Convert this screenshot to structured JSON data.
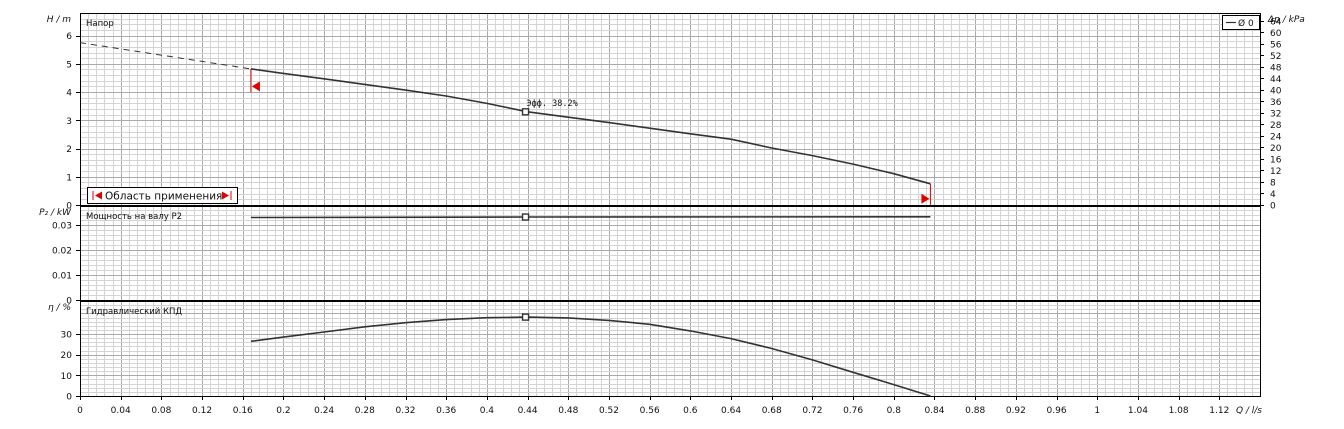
{
  "chart_data": [
    {
      "type": "line",
      "panel": "head",
      "title": "Напор",
      "ylabel": "H / m",
      "ylabel_right": "Δp / kPa",
      "ylim": [
        0,
        6.8
      ],
      "yticks": [
        "0",
        "1",
        "2",
        "3",
        "4",
        "5",
        "6"
      ],
      "ylim_right": [
        0,
        66.7
      ],
      "yticks_right": [
        "0",
        "4",
        "8",
        "12",
        "16",
        "20",
        "24",
        "28",
        "32",
        "36",
        "40",
        "44",
        "48",
        "52",
        "56",
        "60",
        "64"
      ],
      "legend": {
        "placement": "top-right",
        "label": "Ø 0"
      },
      "annotation": "Эфф. 38.2%",
      "operating_range_label": "Область применения",
      "dashed_extension": {
        "x": [
          0,
          0.168
        ],
        "y": [
          5.75,
          4.82
        ]
      },
      "series": [
        {
          "x": [
            0.168,
            0.2,
            0.24,
            0.28,
            0.32,
            0.36,
            0.4,
            0.44,
            0.48,
            0.52,
            0.56,
            0.6,
            0.64,
            0.68,
            0.72,
            0.76,
            0.8,
            0.836
          ],
          "y": [
            4.82,
            4.66,
            4.47,
            4.27,
            4.07,
            3.86,
            3.6,
            3.3,
            3.11,
            2.92,
            2.72,
            2.52,
            2.33,
            2.02,
            1.75,
            1.45,
            1.11,
            0.75
          ]
        }
      ],
      "operating_point": {
        "x": 0.438,
        "y": 3.3
      },
      "range_start_marker": {
        "x": 0.168,
        "y": 4.2
      },
      "range_end_marker": {
        "x": 0.836,
        "y": 0.22
      }
    },
    {
      "type": "line",
      "panel": "power",
      "title": "Мощность на валу P2",
      "ylabel": "P₂ / kW",
      "ylim": [
        0,
        0.0375
      ],
      "yticks": [
        "0",
        "0.01",
        "0.02",
        "0.03"
      ],
      "series": [
        {
          "x": [
            0.168,
            0.44,
            0.836
          ],
          "y": [
            0.0329,
            0.0331,
            0.0332
          ]
        }
      ],
      "operating_point": {
        "x": 0.438,
        "y": 0.0331
      }
    },
    {
      "type": "line",
      "panel": "efficiency",
      "title": "Гидравлический КПД",
      "ylabel": "η / %",
      "ylim": [
        0,
        46
      ],
      "yticks": [
        "0",
        "10",
        "20",
        "30"
      ],
      "series": [
        {
          "x": [
            0.168,
            0.2,
            0.24,
            0.28,
            0.32,
            0.36,
            0.4,
            0.44,
            0.48,
            0.52,
            0.56,
            0.6,
            0.64,
            0.68,
            0.72,
            0.76,
            0.8,
            0.836
          ],
          "y": [
            26.5,
            28.5,
            31.0,
            33.5,
            35.5,
            37.0,
            37.9,
            38.2,
            37.8,
            36.6,
            34.7,
            31.5,
            27.8,
            23.0,
            17.5,
            11.5,
            5.5,
            0.0
          ]
        }
      ],
      "operating_point": {
        "x": 0.438,
        "y": 38.2
      }
    }
  ],
  "x_axis": {
    "label": "Q / l/s",
    "xlim": [
      0,
      1.16
    ],
    "ticks": [
      "0",
      "0.04",
      "0.08",
      "0.12",
      "0.16",
      "0.2",
      "0.24",
      "0.28",
      "0.32",
      "0.36",
      "0.4",
      "0.44",
      "0.48",
      "0.52",
      "0.56",
      "0.6",
      "0.64",
      "0.68",
      "0.72",
      "0.76",
      "0.8",
      "0.84",
      "0.88",
      "0.92",
      "0.96",
      "1",
      "1.04",
      "1.08",
      "1.12"
    ]
  },
  "colors": {
    "curve": "#333333",
    "grid_major": "#aaaaaa",
    "grid_minor": "#d4d4d4",
    "marker_red": "#e00000",
    "frame": "#000000"
  }
}
